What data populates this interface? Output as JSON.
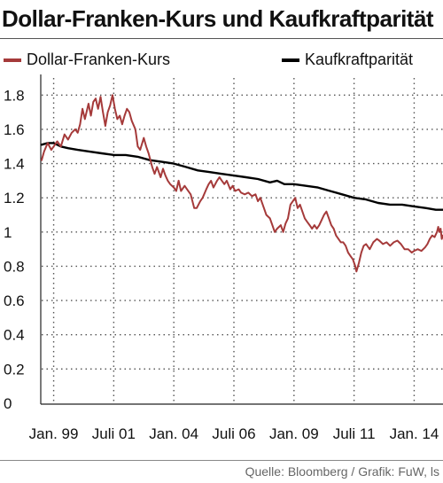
{
  "colors": {
    "franc_series": "#a53a3a",
    "ppp_series": "#000000",
    "grid": "#555555",
    "text": "#111111"
  },
  "chart_data": {
    "type": "line",
    "title": "Dollar-Franken-Kurs und Kaufkraftparität",
    "source": "Quelle: Bloomberg / Grafik: FuW, ls",
    "legend_placement": "top",
    "grid": true,
    "grid_style": "dotted",
    "ylim": [
      0,
      1.9
    ],
    "yticks": [
      {
        "value": 0,
        "label": "0"
      },
      {
        "value": 0.2,
        "label": "0.2"
      },
      {
        "value": 0.4,
        "label": "0.4"
      },
      {
        "value": 0.6,
        "label": "0.6"
      },
      {
        "value": 0.8,
        "label": "0.8"
      },
      {
        "value": 1.0,
        "label": "1"
      },
      {
        "value": 1.2,
        "label": "1.2"
      },
      {
        "value": 1.4,
        "label": "1.4"
      },
      {
        "value": 1.6,
        "label": "1.6"
      },
      {
        "value": 1.8,
        "label": "1.8"
      }
    ],
    "xlim": [
      1998.5,
      2015.2
    ],
    "xticks": [
      {
        "value": 1999.0,
        "label": "Jan. 99"
      },
      {
        "value": 2001.5,
        "label": "Juli 01"
      },
      {
        "value": 2004.0,
        "label": "Jan. 04"
      },
      {
        "value": 2006.5,
        "label": "Juli 06"
      },
      {
        "value": 2009.0,
        "label": "Jan. 09"
      },
      {
        "value": 2011.5,
        "label": "Juli 11"
      },
      {
        "value": 2014.0,
        "label": "Jan. 14"
      }
    ],
    "series": [
      {
        "name": "Dollar-Franken-Kurs",
        "color": "#a53a3a",
        "points": [
          [
            1998.5,
            1.42
          ],
          [
            1998.6,
            1.47
          ],
          [
            1998.75,
            1.52
          ],
          [
            1998.9,
            1.48
          ],
          [
            1999.0,
            1.5
          ],
          [
            1999.15,
            1.53
          ],
          [
            1999.3,
            1.5
          ],
          [
            1999.45,
            1.57
          ],
          [
            1999.6,
            1.54
          ],
          [
            1999.75,
            1.58
          ],
          [
            1999.9,
            1.6
          ],
          [
            2000.0,
            1.58
          ],
          [
            2000.1,
            1.63
          ],
          [
            2000.2,
            1.72
          ],
          [
            2000.3,
            1.66
          ],
          [
            2000.45,
            1.75
          ],
          [
            2000.55,
            1.68
          ],
          [
            2000.65,
            1.76
          ],
          [
            2000.75,
            1.78
          ],
          [
            2000.85,
            1.72
          ],
          [
            2000.95,
            1.79
          ],
          [
            2001.05,
            1.7
          ],
          [
            2001.15,
            1.62
          ],
          [
            2001.25,
            1.7
          ],
          [
            2001.35,
            1.74
          ],
          [
            2001.45,
            1.8
          ],
          [
            2001.55,
            1.72
          ],
          [
            2001.65,
            1.66
          ],
          [
            2001.75,
            1.68
          ],
          [
            2001.85,
            1.63
          ],
          [
            2001.95,
            1.68
          ],
          [
            2002.05,
            1.72
          ],
          [
            2002.15,
            1.7
          ],
          [
            2002.25,
            1.65
          ],
          [
            2002.4,
            1.6
          ],
          [
            2002.5,
            1.5
          ],
          [
            2002.6,
            1.48
          ],
          [
            2002.75,
            1.55
          ],
          [
            2002.85,
            1.5
          ],
          [
            2002.95,
            1.46
          ],
          [
            2003.1,
            1.38
          ],
          [
            2003.2,
            1.34
          ],
          [
            2003.3,
            1.38
          ],
          [
            2003.45,
            1.32
          ],
          [
            2003.55,
            1.37
          ],
          [
            2003.65,
            1.33
          ],
          [
            2003.75,
            1.3
          ],
          [
            2003.85,
            1.28
          ],
          [
            2004.0,
            1.26
          ],
          [
            2004.1,
            1.24
          ],
          [
            2004.2,
            1.3
          ],
          [
            2004.3,
            1.24
          ],
          [
            2004.45,
            1.27
          ],
          [
            2004.55,
            1.25
          ],
          [
            2004.7,
            1.22
          ],
          [
            2004.85,
            1.14
          ],
          [
            2004.95,
            1.14
          ],
          [
            2005.1,
            1.18
          ],
          [
            2005.2,
            1.2
          ],
          [
            2005.35,
            1.25
          ],
          [
            2005.45,
            1.28
          ],
          [
            2005.55,
            1.3
          ],
          [
            2005.65,
            1.26
          ],
          [
            2005.8,
            1.3
          ],
          [
            2005.9,
            1.32
          ],
          [
            2006.0,
            1.3
          ],
          [
            2006.1,
            1.28
          ],
          [
            2006.2,
            1.3
          ],
          [
            2006.35,
            1.25
          ],
          [
            2006.45,
            1.27
          ],
          [
            2006.55,
            1.24
          ],
          [
            2006.7,
            1.25
          ],
          [
            2006.8,
            1.23
          ],
          [
            2006.95,
            1.22
          ],
          [
            2007.1,
            1.23
          ],
          [
            2007.25,
            1.21
          ],
          [
            2007.4,
            1.22
          ],
          [
            2007.5,
            1.18
          ],
          [
            2007.6,
            1.2
          ],
          [
            2007.75,
            1.14
          ],
          [
            2007.85,
            1.1
          ],
          [
            2008.0,
            1.08
          ],
          [
            2008.1,
            1.04
          ],
          [
            2008.2,
            1.0
          ],
          [
            2008.3,
            1.02
          ],
          [
            2008.45,
            1.04
          ],
          [
            2008.55,
            1.0
          ],
          [
            2008.65,
            1.05
          ],
          [
            2008.75,
            1.08
          ],
          [
            2008.85,
            1.16
          ],
          [
            2008.95,
            1.18
          ],
          [
            2009.05,
            1.2
          ],
          [
            2009.15,
            1.14
          ],
          [
            2009.25,
            1.16
          ],
          [
            2009.35,
            1.12
          ],
          [
            2009.45,
            1.08
          ],
          [
            2009.55,
            1.06
          ],
          [
            2009.65,
            1.04
          ],
          [
            2009.75,
            1.02
          ],
          [
            2009.85,
            1.04
          ],
          [
            2009.95,
            1.02
          ],
          [
            2010.05,
            1.04
          ],
          [
            2010.15,
            1.07
          ],
          [
            2010.25,
            1.1
          ],
          [
            2010.35,
            1.12
          ],
          [
            2010.45,
            1.08
          ],
          [
            2010.55,
            1.04
          ],
          [
            2010.65,
            1.02
          ],
          [
            2010.75,
            0.98
          ],
          [
            2010.85,
            0.96
          ],
          [
            2010.95,
            0.94
          ],
          [
            2011.05,
            0.94
          ],
          [
            2011.15,
            0.92
          ],
          [
            2011.25,
            0.88
          ],
          [
            2011.35,
            0.86
          ],
          [
            2011.45,
            0.84
          ],
          [
            2011.55,
            0.8
          ],
          [
            2011.6,
            0.77
          ],
          [
            2011.7,
            0.82
          ],
          [
            2011.8,
            0.88
          ],
          [
            2011.9,
            0.92
          ],
          [
            2012.0,
            0.93
          ],
          [
            2012.15,
            0.9
          ],
          [
            2012.3,
            0.94
          ],
          [
            2012.45,
            0.96
          ],
          [
            2012.55,
            0.95
          ],
          [
            2012.7,
            0.93
          ],
          [
            2012.85,
            0.94
          ],
          [
            2013.0,
            0.92
          ],
          [
            2013.15,
            0.94
          ],
          [
            2013.3,
            0.95
          ],
          [
            2013.45,
            0.93
          ],
          [
            2013.6,
            0.9
          ],
          [
            2013.75,
            0.9
          ],
          [
            2013.9,
            0.88
          ],
          [
            2014.0,
            0.89
          ],
          [
            2014.15,
            0.9
          ],
          [
            2014.3,
            0.89
          ],
          [
            2014.45,
            0.91
          ],
          [
            2014.55,
            0.93
          ],
          [
            2014.65,
            0.96
          ],
          [
            2014.75,
            0.98
          ],
          [
            2014.85,
            0.97
          ],
          [
            2014.95,
            1.0
          ],
          [
            2015.0,
            1.03
          ],
          [
            2015.05,
            1.0
          ],
          [
            2015.1,
            1.02
          ],
          [
            2015.15,
            0.96
          ],
          [
            2015.2,
            0.98
          ]
        ]
      },
      {
        "name": "Kaufkraftparität",
        "color": "#000000",
        "points": [
          [
            1998.5,
            1.51
          ],
          [
            1998.75,
            1.52
          ],
          [
            1999.0,
            1.52
          ],
          [
            1999.3,
            1.5
          ],
          [
            1999.6,
            1.49
          ],
          [
            2000.0,
            1.48
          ],
          [
            2000.5,
            1.47
          ],
          [
            2001.0,
            1.46
          ],
          [
            2001.5,
            1.45
          ],
          [
            2002.0,
            1.45
          ],
          [
            2002.5,
            1.44
          ],
          [
            2003.0,
            1.42
          ],
          [
            2003.5,
            1.41
          ],
          [
            2004.0,
            1.4
          ],
          [
            2004.5,
            1.38
          ],
          [
            2005.0,
            1.36
          ],
          [
            2005.5,
            1.35
          ],
          [
            2006.0,
            1.34
          ],
          [
            2006.5,
            1.33
          ],
          [
            2007.0,
            1.32
          ],
          [
            2007.5,
            1.31
          ],
          [
            2008.0,
            1.29
          ],
          [
            2008.3,
            1.3
          ],
          [
            2008.6,
            1.28
          ],
          [
            2009.0,
            1.28
          ],
          [
            2009.5,
            1.27
          ],
          [
            2010.0,
            1.26
          ],
          [
            2010.5,
            1.24
          ],
          [
            2011.0,
            1.22
          ],
          [
            2011.5,
            1.2
          ],
          [
            2012.0,
            1.19
          ],
          [
            2012.5,
            1.17
          ],
          [
            2013.0,
            1.16
          ],
          [
            2013.5,
            1.16
          ],
          [
            2014.0,
            1.15
          ],
          [
            2014.5,
            1.14
          ],
          [
            2014.9,
            1.13
          ],
          [
            2015.2,
            1.13
          ]
        ]
      }
    ]
  }
}
